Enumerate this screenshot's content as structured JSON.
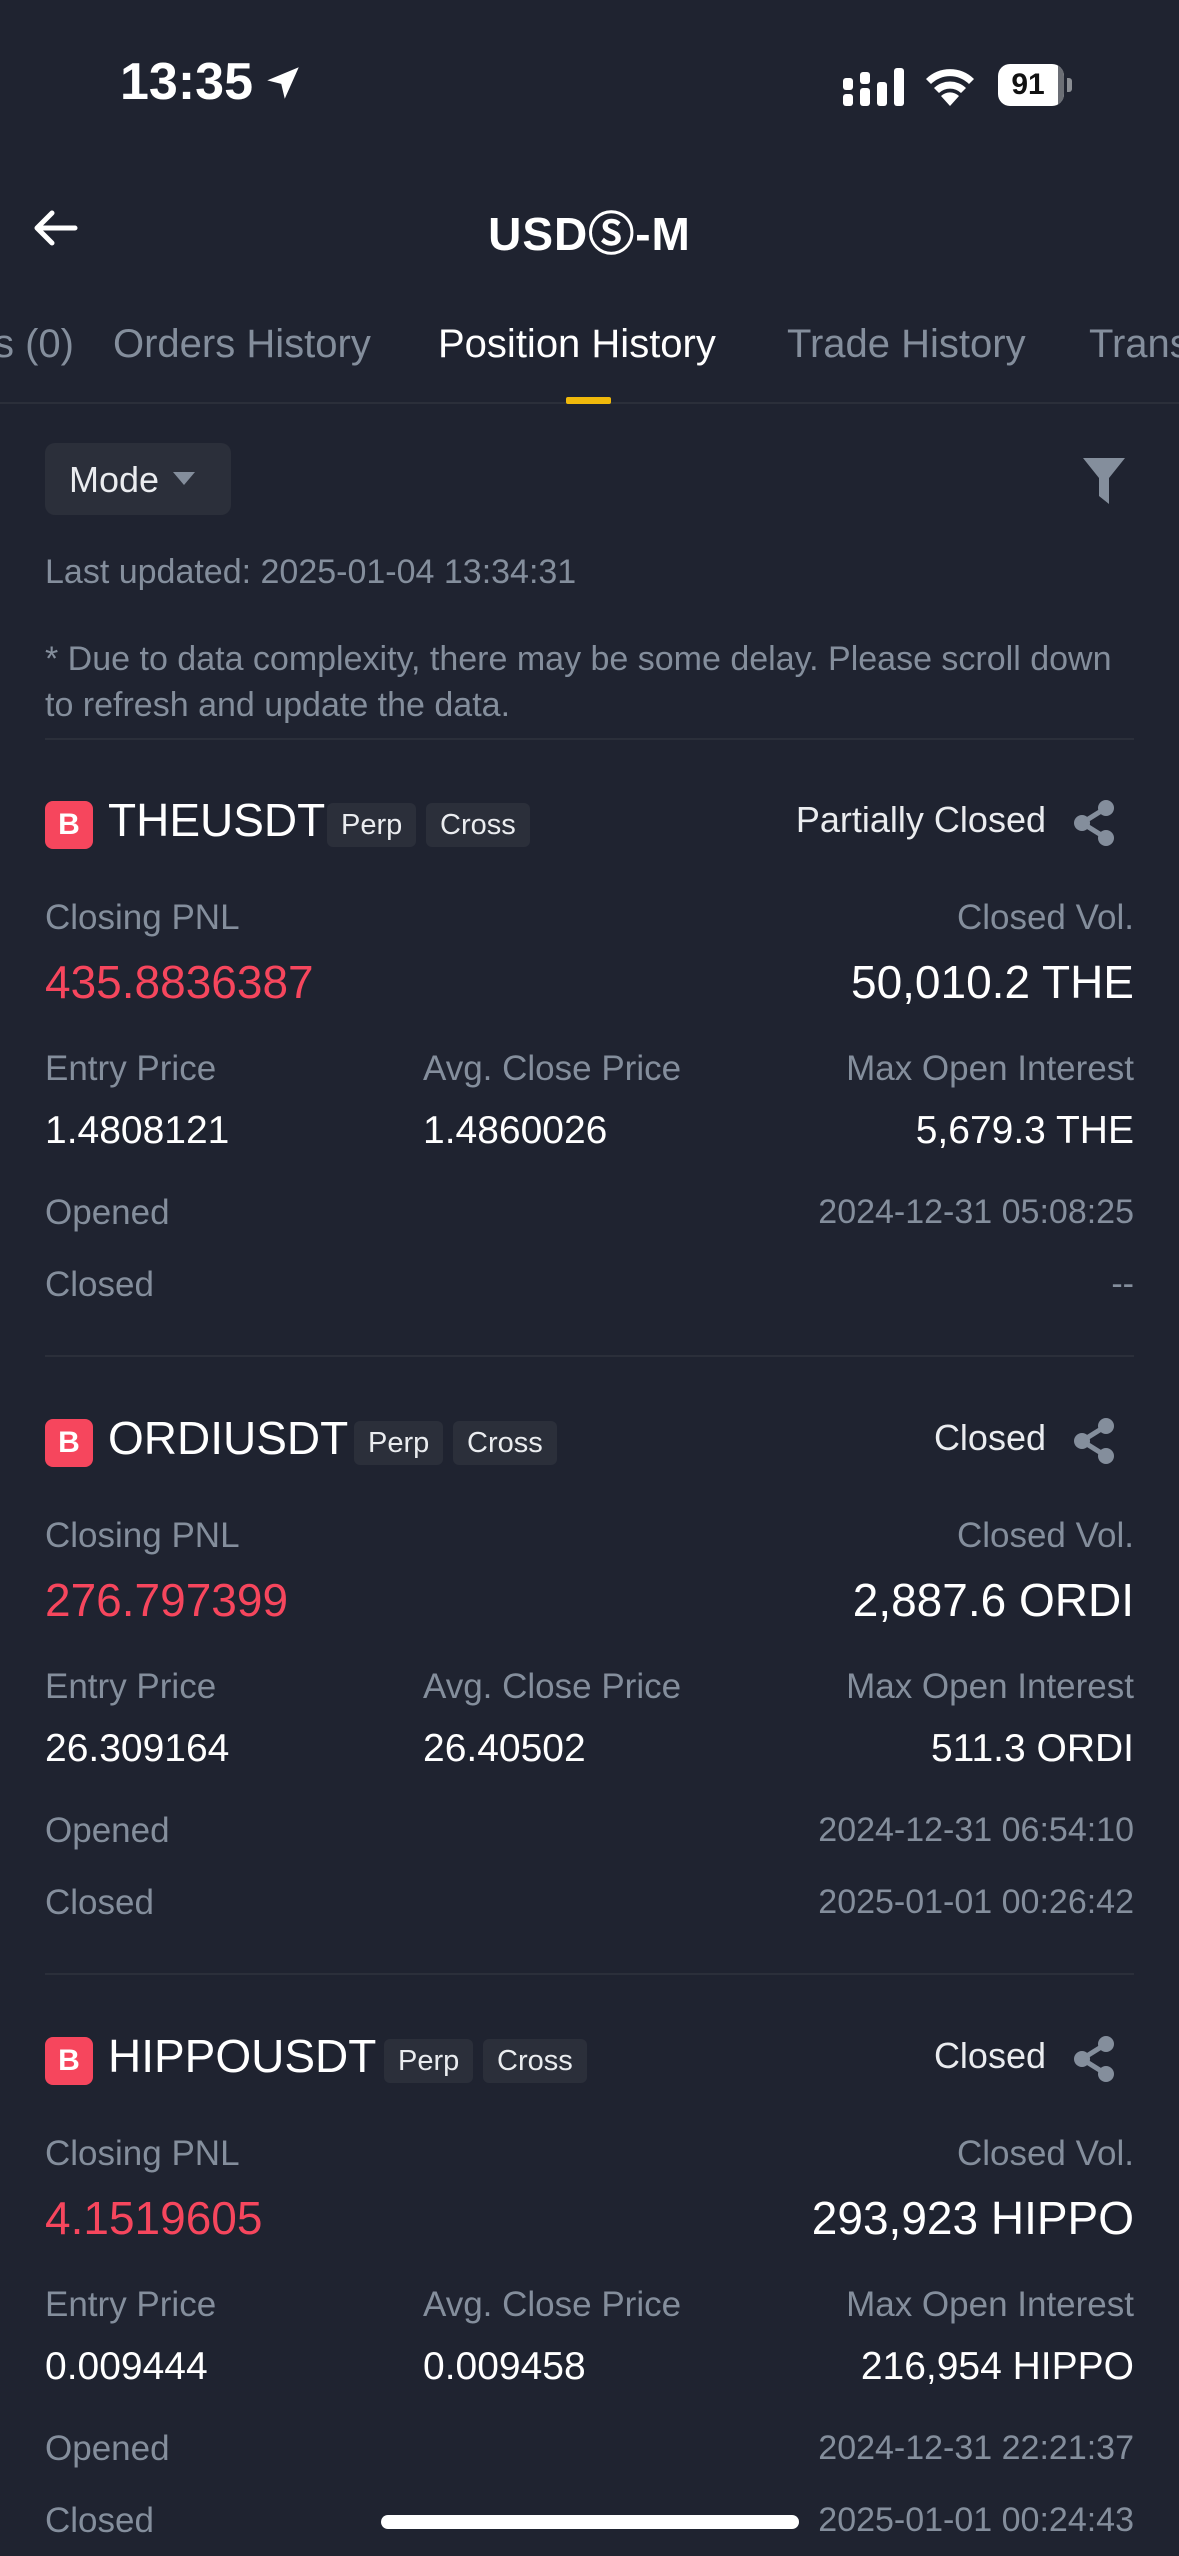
{
  "status_bar": {
    "time": "13:35",
    "battery": "91",
    "battery_level": 0.91
  },
  "header": {
    "title": "USDⓈ-M"
  },
  "tabs": [
    {
      "label": "s (0)"
    },
    {
      "label": "Orders History"
    },
    {
      "label": "Position History",
      "active": true
    },
    {
      "label": "Trade History"
    },
    {
      "label": "Trans"
    }
  ],
  "toolbar": {
    "mode_label": "Mode"
  },
  "last_updated": "Last updated: 2025-01-04 13:34:31",
  "notice": "* Due to data complexity, there may be some delay. Please scroll down to refresh and update the data.",
  "labels": {
    "closing_pnl": "Closing PNL",
    "closed_vol": "Closed Vol.",
    "entry_price": "Entry Price",
    "avg_close_price": "Avg. Close Price",
    "max_open_interest": "Max Open Interest",
    "opened": "Opened",
    "closed": "Closed"
  },
  "positions": [
    {
      "side": "B",
      "symbol": "THEUSDT",
      "tag_type": "Perp",
      "tag_margin": "Cross",
      "status": "Partially Closed",
      "closing_pnl": "435.8836387",
      "closed_vol": "50,010.2 THE",
      "entry_price": "1.4808121",
      "avg_close_price": "1.4860026",
      "max_open_interest": "5,679.3 THE",
      "opened": "2024-12-31 05:08:25",
      "closed": "--"
    },
    {
      "side": "B",
      "symbol": "ORDIUSDT",
      "tag_type": "Perp",
      "tag_margin": "Cross",
      "status": "Closed",
      "closing_pnl": "276.797399",
      "closed_vol": "2,887.6 ORDI",
      "entry_price": "26.309164",
      "avg_close_price": "26.40502",
      "max_open_interest": "511.3 ORDI",
      "opened": "2024-12-31 06:54:10",
      "closed": "2025-01-01 00:26:42"
    },
    {
      "side": "B",
      "symbol": "HIPPOUSDT",
      "tag_type": "Perp",
      "tag_margin": "Cross",
      "status": "Closed",
      "closing_pnl": "4.1519605",
      "closed_vol": "293,923 HIPPO",
      "entry_price": "0.009444",
      "avg_close_price": "0.009458",
      "max_open_interest": "216,954 HIPPO",
      "opened": "2024-12-31 22:21:37",
      "closed": "2025-01-01 00:24:43"
    }
  ]
}
